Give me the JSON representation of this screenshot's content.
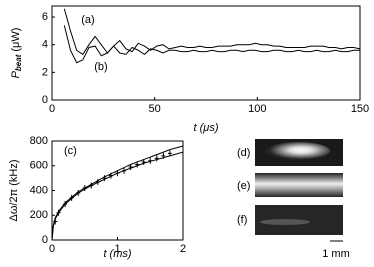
{
  "chart_data": [
    {
      "type": "line",
      "label": "(a)",
      "label2": "(b)",
      "y_label": "P",
      "y_label_sub": "beat",
      "y_label_unit": "(μW)",
      "x_label": "t (μs)",
      "xlim": [
        0,
        150
      ],
      "ylim": [
        0,
        6.8
      ],
      "xticks": [
        0,
        50,
        100,
        150
      ],
      "yticks": [
        0,
        2,
        4,
        6
      ],
      "x": [
        6,
        9,
        12,
        15,
        18,
        21,
        24,
        27,
        30,
        33,
        36,
        39,
        42,
        45,
        48,
        51,
        54,
        57,
        60,
        63,
        66,
        69,
        72,
        75,
        78,
        81,
        84,
        87,
        90,
        93,
        96,
        99,
        102,
        105,
        108,
        111,
        114,
        117,
        120,
        123,
        126,
        129,
        132,
        135,
        138,
        141,
        144,
        147,
        150
      ],
      "series": [
        {
          "color": "#000000",
          "style": "line",
          "values": [
            6.6,
            5.0,
            3.6,
            3.3,
            4.0,
            4.6,
            4.0,
            3.4,
            3.9,
            4.3,
            3.7,
            3.5,
            4.1,
            3.9,
            3.6,
            3.9,
            4.0,
            3.7,
            3.8,
            3.9,
            3.8,
            3.8,
            3.9,
            3.8,
            3.8,
            3.9,
            3.9,
            3.9,
            4.0,
            4.0,
            4.0,
            4.1,
            4.0,
            4.0,
            3.9,
            3.9,
            3.8,
            3.8,
            3.8,
            3.8,
            3.9,
            3.9,
            3.9,
            3.8,
            3.8,
            3.7,
            3.8,
            3.8,
            3.7
          ]
        },
        {
          "color": "#000000",
          "style": "line",
          "values": [
            5.4,
            3.6,
            2.7,
            2.9,
            3.8,
            3.9,
            3.2,
            3.4,
            3.9,
            3.4,
            3.3,
            3.8,
            3.6,
            3.3,
            3.7,
            3.6,
            3.4,
            3.6,
            3.6,
            3.5,
            3.5,
            3.6,
            3.5,
            3.5,
            3.6,
            3.5,
            3.5,
            3.6,
            3.6,
            3.5,
            3.6,
            3.6,
            3.5,
            3.5,
            3.6,
            3.6,
            3.5,
            3.5,
            3.6,
            3.5,
            3.5,
            3.6,
            3.5,
            3.5,
            3.6,
            3.5,
            3.5,
            3.6,
            3.6
          ]
        }
      ]
    },
    {
      "type": "line",
      "label": "(c)",
      "y_label": "Δω/2π (kHz)",
      "x_label": "t (ms)",
      "xlim": [
        0,
        2
      ],
      "ylim": [
        0,
        800
      ],
      "xticks": [
        0,
        1,
        2
      ],
      "yticks": [
        0,
        200,
        400,
        600,
        800
      ],
      "series": [
        {
          "color": "#000000",
          "style": "markers",
          "x": [
            0.05,
            0.1,
            0.2,
            0.3,
            0.4,
            0.5,
            0.6,
            0.7,
            0.8,
            0.9,
            1.0,
            1.1,
            1.2,
            1.3,
            1.4,
            1.5,
            1.6,
            1.7,
            1.8
          ],
          "values": [
            150,
            220,
            290,
            340,
            380,
            420,
            440,
            470,
            500,
            520,
            540,
            560,
            590,
            610,
            630,
            640,
            660,
            680,
            700
          ]
        },
        {
          "color": "#000000",
          "style": "line",
          "x": [
            0,
            0.02,
            0.05,
            0.1,
            0.2,
            0.4,
            0.6,
            0.8,
            1.0,
            1.2,
            1.4,
            1.6,
            1.8,
            2.0
          ],
          "values": [
            0,
            120,
            180,
            230,
            300,
            390,
            450,
            510,
            560,
            610,
            650,
            690,
            730,
            760
          ]
        },
        {
          "color": "#000000",
          "style": "line",
          "x": [
            0,
            0.02,
            0.05,
            0.1,
            0.2,
            0.4,
            0.6,
            0.8,
            1.0,
            1.2,
            1.4,
            1.6,
            1.8,
            2.0
          ],
          "values": [
            0,
            110,
            170,
            220,
            290,
            380,
            440,
            490,
            540,
            580,
            620,
            650,
            680,
            710
          ]
        }
      ]
    }
  ],
  "images": [
    {
      "label": "(d)"
    },
    {
      "label": "(e)"
    },
    {
      "label": "(f)"
    }
  ],
  "scale_bar": "1 mm"
}
